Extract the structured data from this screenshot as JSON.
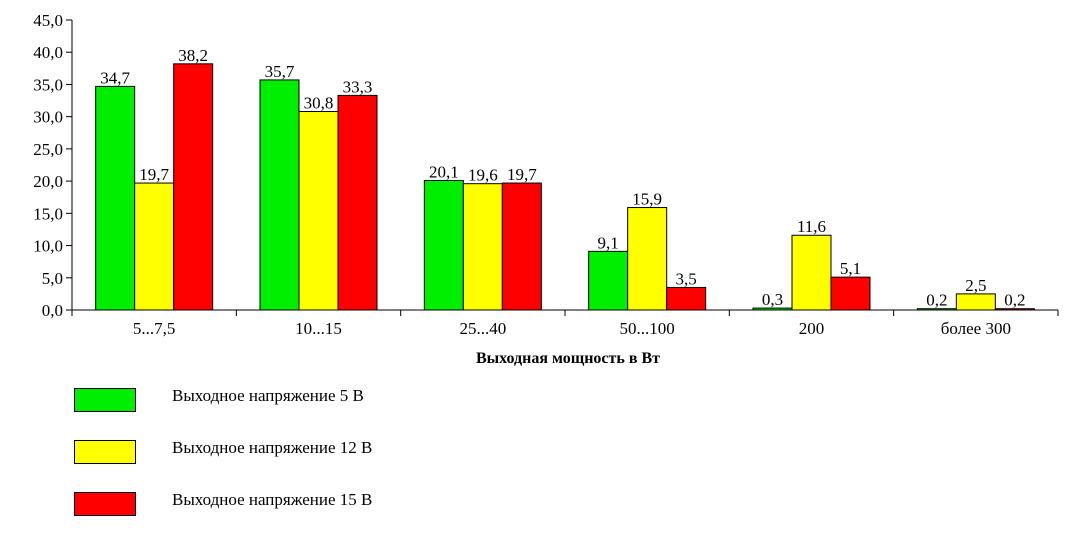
{
  "chart_data": {
    "type": "bar",
    "categories": [
      "5...7,5",
      "10...15",
      "25...40",
      "50...100",
      "200",
      "более 300"
    ],
    "series": [
      {
        "name": "Выходное напряжение 5 В",
        "color": "#00ee00",
        "values": [
          34.7,
          35.7,
          20.1,
          9.1,
          0.3,
          0.2
        ],
        "labels": [
          "34,7",
          "35,7",
          "20,1",
          "9,1",
          "0,3",
          "0,2"
        ]
      },
      {
        "name": "Выходное напряжение 12 В",
        "color": "#ffff00",
        "values": [
          19.7,
          30.8,
          19.6,
          15.9,
          11.6,
          2.5
        ],
        "labels": [
          "19,7",
          "30,8",
          "19,6",
          "15,9",
          "11,6",
          "2,5"
        ]
      },
      {
        "name": "Выходное напряжение 15 В",
        "color": "#ff0000",
        "values": [
          38.2,
          33.3,
          19.7,
          3.5,
          5.1,
          0.2
        ],
        "labels": [
          "38,2",
          "33,3",
          "19,7",
          "3,5",
          "5,1",
          "0,2"
        ]
      }
    ],
    "yticks": [
      "0,0",
      "5,0",
      "10,0",
      "15,0",
      "20,0",
      "25,0",
      "30,0",
      "35,0",
      "40,0",
      "45,0"
    ],
    "ylim": [
      0,
      45
    ],
    "xlabel": "Выходная мощность в Вт",
    "ylabel": "",
    "title": "",
    "grid": false,
    "legend_position": "bottom-left"
  }
}
